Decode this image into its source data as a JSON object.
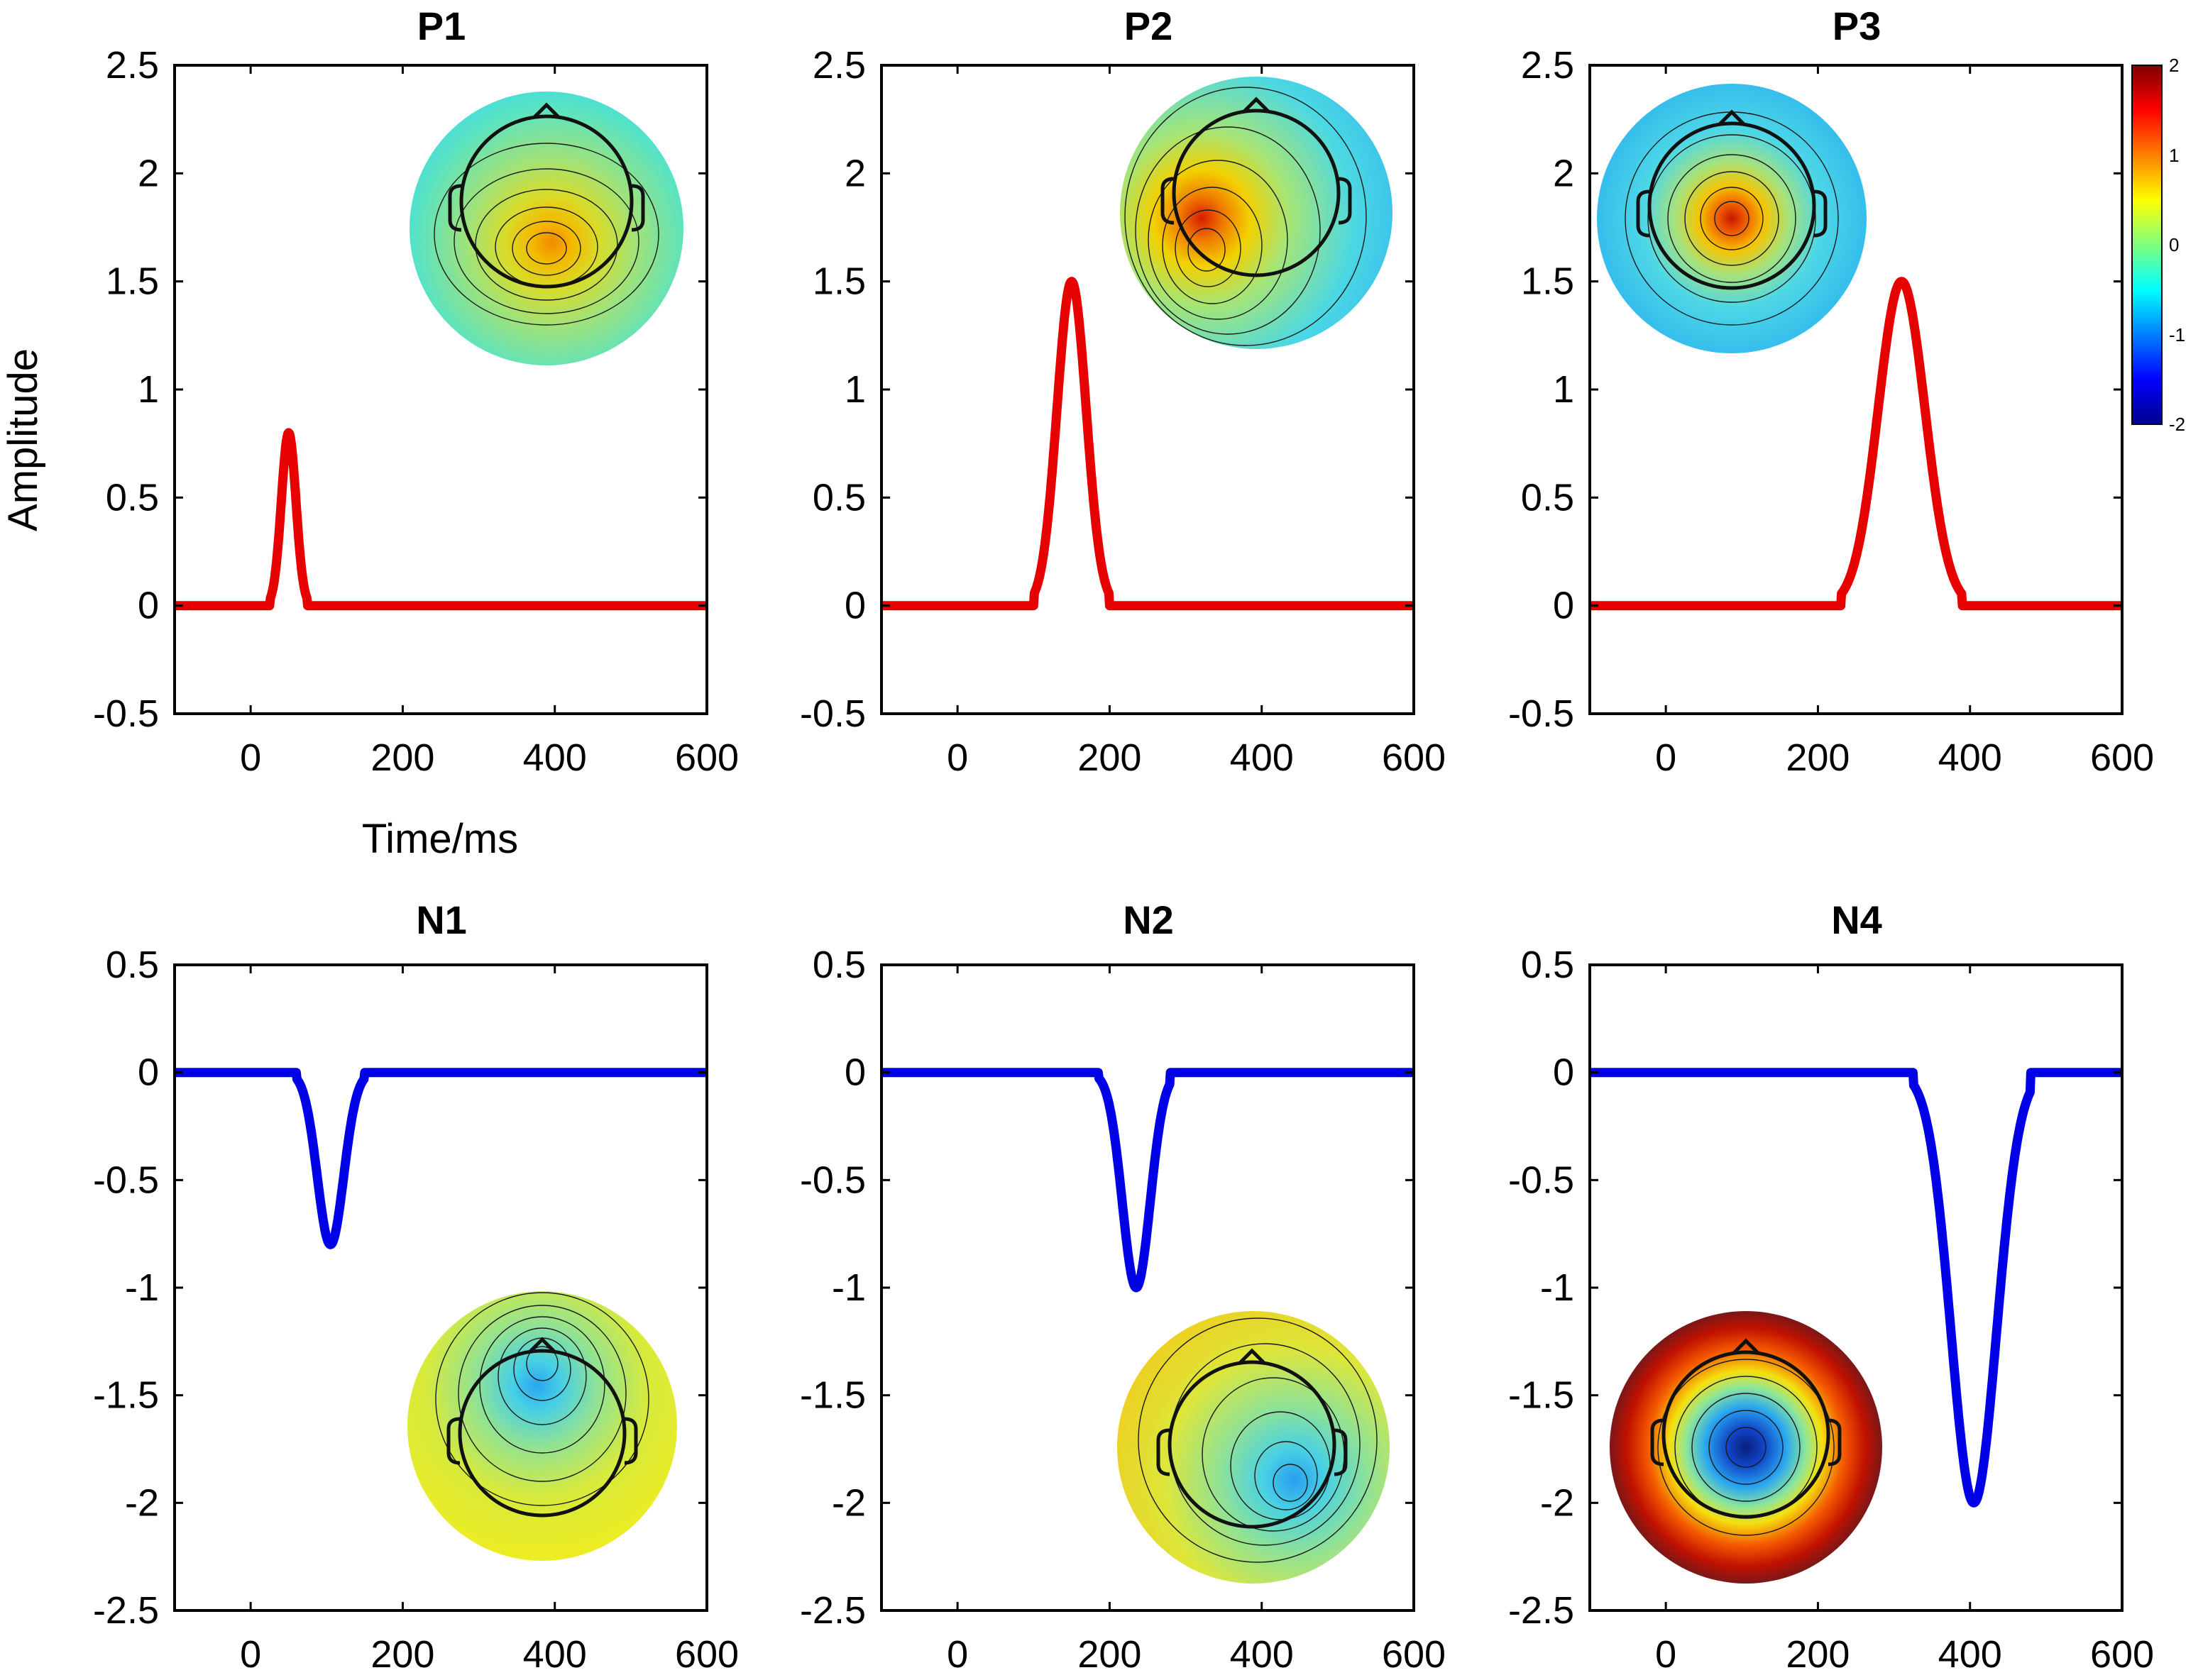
{
  "colors": {
    "positive": "#e60000",
    "negative": "#0000e6"
  },
  "shared_labels": {
    "ylabel": "Amplitude",
    "xlabel": "Time/ms"
  },
  "colorbar": {
    "ticks": [
      "2",
      "1",
      "0",
      "-1",
      "-2"
    ],
    "range": [
      -2,
      2
    ],
    "colormap": "jet"
  },
  "chart_data": [
    {
      "type": "line",
      "title": "P1",
      "color": "#e60000",
      "xlim": [
        -100,
        600
      ],
      "ylim": [
        -0.5,
        2.5
      ],
      "xticks": [
        "0",
        "200",
        "400",
        "600"
      ],
      "yticks": [
        "2.5",
        "2",
        "1.5",
        "1",
        "0.5",
        "0",
        "-0.5"
      ],
      "x": [
        -100,
        25,
        40,
        50,
        60,
        75,
        600
      ],
      "y": [
        0,
        0,
        0.45,
        0.8,
        0.45,
        0,
        0
      ],
      "peak_ms": 50,
      "peak_amplitude": 0.8,
      "topomap": "P1 scalp map (posterior positivity)"
    },
    {
      "type": "line",
      "title": "P2",
      "color": "#e60000",
      "xlim": [
        -100,
        600
      ],
      "ylim": [
        -0.5,
        2.5
      ],
      "xticks": [
        "0",
        "200",
        "400",
        "600"
      ],
      "yticks": [
        "2.5",
        "2",
        "1.5",
        "1",
        "0.5",
        "0",
        "-0.5"
      ],
      "x": [
        -100,
        100,
        125,
        150,
        175,
        200,
        600
      ],
      "y": [
        0,
        0,
        0.85,
        1.5,
        0.85,
        0,
        0
      ],
      "peak_ms": 150,
      "peak_amplitude": 1.5,
      "topomap": "P2 scalp map (left-lateral positivity)"
    },
    {
      "type": "line",
      "title": "P3",
      "color": "#e60000",
      "xlim": [
        -100,
        600
      ],
      "ylim": [
        -0.5,
        2.5
      ],
      "xticks": [
        "0",
        "200",
        "400",
        "600"
      ],
      "yticks": [
        "2.5",
        "2",
        "1.5",
        "1",
        "0.5",
        "0",
        "-0.5"
      ],
      "x": [
        -100,
        230,
        270,
        310,
        350,
        390,
        600
      ],
      "y": [
        0,
        0,
        0.85,
        1.5,
        0.85,
        0,
        0
      ],
      "peak_ms": 310,
      "peak_amplitude": 1.5,
      "topomap": "P3 scalp map (central positivity)"
    },
    {
      "type": "line",
      "title": "N1",
      "color": "#0000e6",
      "xlim": [
        -100,
        600
      ],
      "ylim": [
        -2.5,
        0.5
      ],
      "xticks": [
        "0",
        "200",
        "400",
        "600"
      ],
      "yticks": [
        "0.5",
        "0",
        "-0.5",
        "-1",
        "-1.5",
        "-2",
        "-2.5"
      ],
      "x": [
        -100,
        60,
        85,
        105,
        125,
        150,
        600
      ],
      "y": [
        0,
        0,
        -0.45,
        -0.8,
        -0.45,
        0,
        0
      ],
      "peak_ms": 105,
      "peak_amplitude": -0.8,
      "topomap": "N1 scalp map (frontal negativity)"
    },
    {
      "type": "line",
      "title": "N2",
      "color": "#0000e6",
      "xlim": [
        -100,
        600
      ],
      "ylim": [
        -2.5,
        0.5
      ],
      "xticks": [
        "0",
        "200",
        "400",
        "600"
      ],
      "yticks": [
        "0.5",
        "0",
        "-0.5",
        "-1",
        "-1.5",
        "-2",
        "-2.5"
      ],
      "x": [
        -100,
        185,
        210,
        235,
        260,
        280,
        600
      ],
      "y": [
        0,
        0,
        -0.55,
        -1.0,
        -0.55,
        0,
        0
      ],
      "peak_ms": 235,
      "peak_amplitude": -1.0,
      "topomap": "N2 scalp map (right-posterior negativity)"
    },
    {
      "type": "line",
      "title": "N4",
      "color": "#0000e6",
      "xlim": [
        -100,
        600
      ],
      "ylim": [
        -2.5,
        0.5
      ],
      "xticks": [
        "0",
        "200",
        "400",
        "600"
      ],
      "yticks": [
        "0.5",
        "0",
        "-0.5",
        "-1",
        "-1.5",
        "-2",
        "-2.5"
      ],
      "x": [
        -100,
        325,
        365,
        405,
        445,
        480,
        600
      ],
      "y": [
        0,
        0,
        -1.1,
        -2.0,
        -1.1,
        0,
        0
      ],
      "peak_ms": 405,
      "peak_amplitude": -2.0,
      "topomap": "N4 scalp map (centro-parietal negativity)"
    }
  ]
}
